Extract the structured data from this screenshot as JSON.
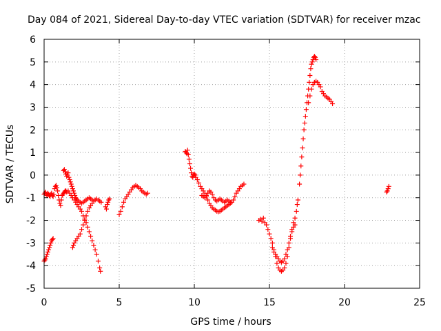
{
  "chart_data": {
    "type": "scatter",
    "title": "Day 084 of 2021, Sidereal Day-to-day VTEC variation (SDTVAR) for receiver mzac",
    "xlabel": "GPS time / hours",
    "ylabel": "SDTVAR / TECUs",
    "xlim": [
      0,
      25
    ],
    "ylim": [
      -5,
      6
    ],
    "xticks": [
      "0",
      "5",
      "10",
      "15",
      "20",
      "25"
    ],
    "yticks": [
      "-5",
      "-4",
      "-3",
      "-2",
      "-1",
      "0",
      "1",
      "2",
      "3",
      "4",
      "5",
      "6"
    ],
    "grid": true,
    "marker": "+",
    "marker_color": "#ff0000",
    "series": [
      {
        "points": [
          [
            0.0,
            -0.85
          ],
          [
            0.05,
            -0.8
          ],
          [
            0.1,
            -0.75
          ],
          [
            0.15,
            -0.85
          ],
          [
            0.2,
            -0.9
          ],
          [
            0.25,
            -0.8
          ],
          [
            0.3,
            -0.85
          ],
          [
            0.35,
            -0.9
          ],
          [
            0.4,
            -0.95
          ],
          [
            0.45,
            -0.85
          ],
          [
            0.5,
            -0.8
          ],
          [
            0.55,
            -0.9
          ],
          [
            0.6,
            -0.95
          ],
          [
            0.65,
            -0.85
          ],
          [
            0.0,
            -3.8
          ],
          [
            0.05,
            -3.75
          ],
          [
            0.1,
            -3.7
          ],
          [
            0.15,
            -3.6
          ],
          [
            0.2,
            -3.5
          ],
          [
            0.25,
            -3.4
          ],
          [
            0.3,
            -3.3
          ],
          [
            0.35,
            -3.2
          ],
          [
            0.4,
            -3.1
          ],
          [
            0.45,
            -3.0
          ],
          [
            0.5,
            -2.9
          ],
          [
            0.55,
            -2.85
          ],
          [
            0.6,
            -2.8
          ],
          [
            0.7,
            -0.6
          ],
          [
            0.75,
            -0.5
          ],
          [
            0.8,
            -0.45
          ],
          [
            0.85,
            -0.55
          ],
          [
            0.9,
            -0.7
          ],
          [
            0.95,
            -0.9
          ],
          [
            1.0,
            -1.1
          ],
          [
            1.05,
            -1.25
          ],
          [
            1.1,
            -1.35
          ],
          [
            1.15,
            -1.1
          ],
          [
            1.2,
            -0.9
          ],
          [
            1.25,
            -0.85
          ],
          [
            1.3,
            -0.8
          ],
          [
            1.35,
            -0.75
          ],
          [
            1.4,
            -0.7
          ],
          [
            1.45,
            -0.7
          ],
          [
            1.5,
            -0.75
          ],
          [
            1.3,
            0.2
          ],
          [
            1.35,
            0.25
          ],
          [
            1.4,
            0.15
          ],
          [
            1.45,
            0.05
          ],
          [
            1.5,
            -0.05
          ],
          [
            1.55,
            0.0
          ],
          [
            1.6,
            0.1
          ],
          [
            1.65,
            -0.1
          ],
          [
            1.7,
            -0.2
          ],
          [
            1.75,
            -0.3
          ],
          [
            1.8,
            -0.4
          ],
          [
            1.85,
            -0.5
          ],
          [
            1.9,
            -0.6
          ],
          [
            1.95,
            -0.7
          ],
          [
            2.0,
            -0.8
          ],
          [
            2.05,
            -0.9
          ],
          [
            2.1,
            -1.0
          ],
          [
            2.15,
            -1.05
          ],
          [
            2.2,
            -1.1
          ],
          [
            2.3,
            -1.15
          ],
          [
            2.4,
            -1.2
          ],
          [
            2.5,
            -1.25
          ],
          [
            2.6,
            -1.2
          ],
          [
            2.7,
            -1.15
          ],
          [
            2.8,
            -1.1
          ],
          [
            2.9,
            -1.05
          ],
          [
            3.0,
            -1.0
          ],
          [
            3.1,
            -1.05
          ],
          [
            3.2,
            -1.1
          ],
          [
            3.3,
            -1.15
          ],
          [
            3.4,
            -1.1
          ],
          [
            3.5,
            -1.05
          ],
          [
            3.6,
            -1.1
          ],
          [
            3.7,
            -1.15
          ],
          [
            3.8,
            -1.2
          ],
          [
            1.6,
            -0.7
          ],
          [
            1.7,
            -0.8
          ],
          [
            1.8,
            -0.9
          ],
          [
            1.9,
            -1.0
          ],
          [
            2.0,
            -1.1
          ],
          [
            2.1,
            -1.2
          ],
          [
            2.2,
            -1.3
          ],
          [
            2.3,
            -1.4
          ],
          [
            2.4,
            -1.5
          ],
          [
            2.5,
            -1.6
          ],
          [
            2.6,
            -1.8
          ],
          [
            2.7,
            -1.95
          ],
          [
            2.8,
            -2.1
          ],
          [
            2.9,
            -2.3
          ],
          [
            3.0,
            -2.5
          ],
          [
            3.1,
            -2.7
          ],
          [
            3.2,
            -2.9
          ],
          [
            3.3,
            -3.1
          ],
          [
            3.4,
            -3.3
          ],
          [
            3.5,
            -3.5
          ],
          [
            3.6,
            -3.8
          ],
          [
            3.7,
            -4.1
          ],
          [
            3.75,
            -4.25
          ],
          [
            1.9,
            -3.2
          ],
          [
            1.95,
            -3.1
          ],
          [
            2.0,
            -3.0
          ],
          [
            2.1,
            -2.9
          ],
          [
            2.2,
            -2.8
          ],
          [
            2.3,
            -2.7
          ],
          [
            2.4,
            -2.6
          ],
          [
            2.5,
            -2.4
          ],
          [
            2.6,
            -2.2
          ],
          [
            2.7,
            -2.0
          ],
          [
            2.8,
            -1.8
          ],
          [
            2.9,
            -1.6
          ],
          [
            3.0,
            -1.45
          ],
          [
            3.1,
            -1.35
          ],
          [
            3.2,
            -1.25
          ],
          [
            4.1,
            -1.4
          ],
          [
            4.15,
            -1.5
          ],
          [
            4.2,
            -1.3
          ],
          [
            4.25,
            -1.2
          ],
          [
            4.3,
            -1.1
          ],
          [
            4.35,
            -1.05
          ],
          [
            5.0,
            -1.75
          ],
          [
            5.1,
            -1.6
          ],
          [
            5.2,
            -1.4
          ],
          [
            5.3,
            -1.2
          ],
          [
            5.4,
            -1.05
          ],
          [
            5.5,
            -0.95
          ],
          [
            5.6,
            -0.85
          ],
          [
            5.7,
            -0.75
          ],
          [
            5.8,
            -0.65
          ],
          [
            5.9,
            -0.55
          ],
          [
            6.0,
            -0.5
          ],
          [
            6.1,
            -0.45
          ],
          [
            6.2,
            -0.5
          ],
          [
            6.3,
            -0.55
          ],
          [
            6.4,
            -0.6
          ],
          [
            6.5,
            -0.7
          ],
          [
            6.6,
            -0.75
          ],
          [
            6.7,
            -0.8
          ],
          [
            6.8,
            -0.85
          ],
          [
            6.9,
            -0.8
          ],
          [
            9.4,
            1.05
          ],
          [
            9.45,
            1.0
          ],
          [
            9.5,
            0.95
          ],
          [
            9.55,
            1.1
          ],
          [
            9.6,
            0.9
          ],
          [
            9.65,
            0.7
          ],
          [
            9.7,
            0.5
          ],
          [
            9.75,
            0.3
          ],
          [
            9.8,
            0.1
          ],
          [
            9.85,
            -0.05
          ],
          [
            9.9,
            -0.1
          ],
          [
            9.95,
            0.0
          ],
          [
            10.0,
            0.05
          ],
          [
            10.05,
            0.0
          ],
          [
            10.1,
            -0.1
          ],
          [
            10.2,
            -0.2
          ],
          [
            10.3,
            -0.35
          ],
          [
            10.4,
            -0.5
          ],
          [
            10.5,
            -0.6
          ],
          [
            10.6,
            -0.7
          ],
          [
            10.7,
            -0.8
          ],
          [
            10.8,
            -0.95
          ],
          [
            10.9,
            -1.1
          ],
          [
            11.0,
            -1.25
          ],
          [
            11.1,
            -1.35
          ],
          [
            11.2,
            -1.45
          ],
          [
            11.3,
            -1.5
          ],
          [
            11.4,
            -1.55
          ],
          [
            11.5,
            -1.6
          ],
          [
            11.6,
            -1.62
          ],
          [
            11.7,
            -1.6
          ],
          [
            11.8,
            -1.55
          ],
          [
            11.9,
            -1.5
          ],
          [
            12.0,
            -1.45
          ],
          [
            12.1,
            -1.4
          ],
          [
            12.2,
            -1.35
          ],
          [
            12.3,
            -1.3
          ],
          [
            12.4,
            -1.25
          ],
          [
            12.5,
            -1.2
          ],
          [
            12.6,
            -1.1
          ],
          [
            12.7,
            -0.95
          ],
          [
            12.8,
            -0.8
          ],
          [
            12.9,
            -0.7
          ],
          [
            13.0,
            -0.6
          ],
          [
            13.1,
            -0.5
          ],
          [
            13.2,
            -0.45
          ],
          [
            13.3,
            -0.4
          ],
          [
            10.5,
            -0.9
          ],
          [
            10.6,
            -0.95
          ],
          [
            10.7,
            -1.0
          ],
          [
            10.8,
            -0.9
          ],
          [
            10.9,
            -0.8
          ],
          [
            11.0,
            -0.7
          ],
          [
            11.1,
            -0.75
          ],
          [
            11.2,
            -0.85
          ],
          [
            11.3,
            -1.0
          ],
          [
            11.4,
            -1.1
          ],
          [
            11.5,
            -1.15
          ],
          [
            11.6,
            -1.1
          ],
          [
            11.7,
            -1.05
          ],
          [
            11.8,
            -1.1
          ],
          [
            11.9,
            -1.15
          ],
          [
            12.0,
            -1.2
          ],
          [
            12.1,
            -1.15
          ],
          [
            12.2,
            -1.1
          ],
          [
            12.3,
            -1.15
          ],
          [
            12.4,
            -1.2
          ],
          [
            14.3,
            -2.0
          ],
          [
            14.4,
            -1.95
          ],
          [
            14.5,
            -2.05
          ],
          [
            14.6,
            -1.9
          ],
          [
            14.7,
            -2.1
          ],
          [
            14.8,
            -2.2
          ],
          [
            14.9,
            -2.4
          ],
          [
            15.0,
            -2.6
          ],
          [
            15.1,
            -2.8
          ],
          [
            15.2,
            -3.0
          ],
          [
            15.3,
            -3.3
          ],
          [
            15.4,
            -3.6
          ],
          [
            15.5,
            -3.9
          ],
          [
            15.6,
            -4.1
          ],
          [
            15.7,
            -4.2
          ],
          [
            15.8,
            -4.25
          ],
          [
            15.9,
            -4.2
          ],
          [
            16.0,
            -4.1
          ],
          [
            16.1,
            -3.9
          ],
          [
            16.2,
            -3.6
          ],
          [
            16.3,
            -3.2
          ],
          [
            16.4,
            -2.8
          ],
          [
            16.5,
            -2.4
          ],
          [
            16.6,
            -2.1
          ],
          [
            16.7,
            -1.9
          ],
          [
            16.8,
            -1.6
          ],
          [
            16.85,
            -1.3
          ],
          [
            16.9,
            -1.1
          ],
          [
            15.2,
            -3.2
          ],
          [
            15.3,
            -3.4
          ],
          [
            15.4,
            -3.5
          ],
          [
            15.5,
            -3.6
          ],
          [
            15.6,
            -3.7
          ],
          [
            15.7,
            -3.8
          ],
          [
            15.8,
            -3.85
          ],
          [
            15.9,
            -3.8
          ],
          [
            16.0,
            -3.7
          ],
          [
            16.1,
            -3.5
          ],
          [
            16.2,
            -3.3
          ],
          [
            16.3,
            -3.0
          ],
          [
            16.4,
            -2.7
          ],
          [
            16.5,
            -2.5
          ],
          [
            16.6,
            -2.3
          ],
          [
            16.7,
            -2.2
          ],
          [
            17.0,
            -0.4
          ],
          [
            17.05,
            0.0
          ],
          [
            17.1,
            0.4
          ],
          [
            17.15,
            0.8
          ],
          [
            17.2,
            1.2
          ],
          [
            17.25,
            1.6
          ],
          [
            17.3,
            2.0
          ],
          [
            17.35,
            2.3
          ],
          [
            17.4,
            2.6
          ],
          [
            17.45,
            2.9
          ],
          [
            17.5,
            3.2
          ],
          [
            17.55,
            3.5
          ],
          [
            17.6,
            3.8
          ],
          [
            17.65,
            4.1
          ],
          [
            17.7,
            4.4
          ],
          [
            17.75,
            4.7
          ],
          [
            17.8,
            4.9
          ],
          [
            17.85,
            5.0
          ],
          [
            17.9,
            5.1
          ],
          [
            17.95,
            5.2
          ],
          [
            18.0,
            5.25
          ],
          [
            18.05,
            5.2
          ],
          [
            18.1,
            5.1
          ],
          [
            17.6,
            3.2
          ],
          [
            17.7,
            3.5
          ],
          [
            17.8,
            3.8
          ],
          [
            17.9,
            4.0
          ],
          [
            18.0,
            4.1
          ],
          [
            18.1,
            4.15
          ],
          [
            18.2,
            4.1
          ],
          [
            18.3,
            4.0
          ],
          [
            18.4,
            3.9
          ],
          [
            18.5,
            3.7
          ],
          [
            18.6,
            3.6
          ],
          [
            18.7,
            3.5
          ],
          [
            18.8,
            3.45
          ],
          [
            18.9,
            3.4
          ],
          [
            19.0,
            3.35
          ],
          [
            19.1,
            3.25
          ],
          [
            19.2,
            3.15
          ],
          [
            22.8,
            -0.75
          ],
          [
            22.85,
            -0.7
          ],
          [
            22.9,
            -0.6
          ],
          [
            22.95,
            -0.5
          ]
        ]
      }
    ]
  }
}
